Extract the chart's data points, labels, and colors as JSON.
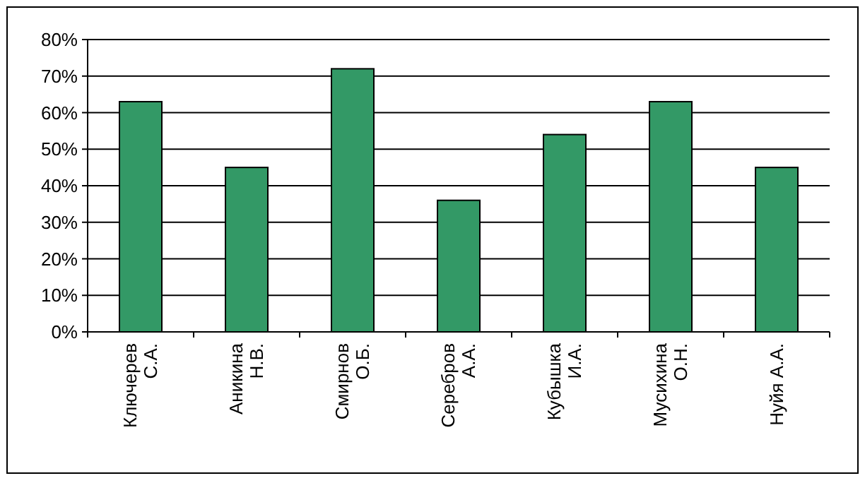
{
  "chart_data": {
    "type": "bar",
    "categories": [
      "Ключерев\nС.А.",
      "Аникина\nН.В.",
      "Смирнов\nО.Б.",
      "Серебров\nА.А.",
      "Кубышка\nИ.А.",
      "Мусихина\nО.Н.",
      "Нуйя А.А."
    ],
    "values": [
      63,
      45,
      72,
      36,
      54,
      63,
      45
    ],
    "color": "#339966",
    "ylim": [
      0,
      80
    ],
    "yticks": [
      {
        "value": 0,
        "label": "0%"
      },
      {
        "value": 10,
        "label": "10%"
      },
      {
        "value": 20,
        "label": "20%"
      },
      {
        "value": 30,
        "label": "30%"
      },
      {
        "value": 40,
        "label": "40%"
      },
      {
        "value": 50,
        "label": "50%"
      },
      {
        "value": 60,
        "label": "60%"
      },
      {
        "value": 70,
        "label": "70%"
      },
      {
        "value": 80,
        "label": "80%"
      }
    ],
    "grid": "y"
  }
}
